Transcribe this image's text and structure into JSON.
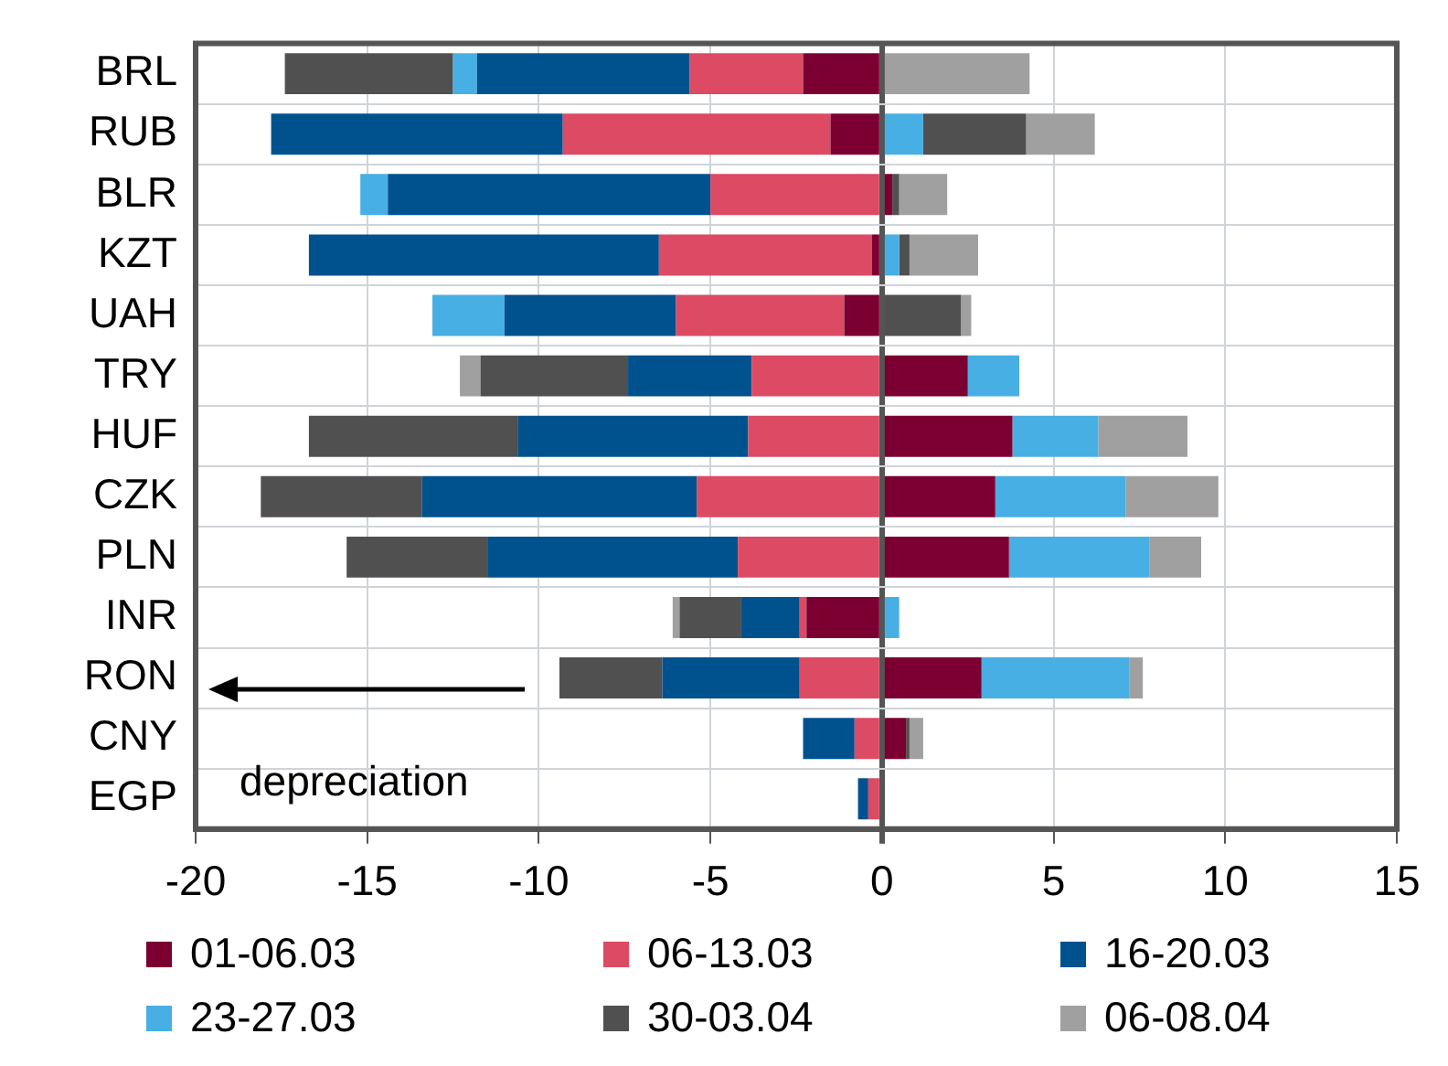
{
  "chart_data": {
    "type": "bar",
    "orientation": "horizontal",
    "stacked": true,
    "categories": [
      "BRL",
      "RUB",
      "BLR",
      "KZT",
      "UAH",
      "TRY",
      "HUF",
      "CZK",
      "PLN",
      "INR",
      "RON",
      "CNY",
      "EGP"
    ],
    "series": [
      {
        "name": "01-06.03",
        "color": "#7b0031",
        "values": [
          -2.3,
          -1.5,
          0.3,
          -0.3,
          -1.1,
          2.5,
          3.8,
          3.3,
          3.7,
          -2.2,
          2.9,
          0.7,
          null
        ]
      },
      {
        "name": "06-13.03",
        "color": "#dc4a63",
        "values": [
          -3.3,
          -7.8,
          -5.0,
          -6.2,
          -4.9,
          -3.8,
          -3.9,
          -5.4,
          -4.2,
          -0.2,
          -2.4,
          -0.8,
          -0.4
        ]
      },
      {
        "name": "16-20.03",
        "color": "#00528f",
        "values": [
          -6.2,
          -8.5,
          -9.4,
          -10.2,
          -5.0,
          -3.6,
          -6.7,
          -8.0,
          -7.3,
          -1.7,
          -4.0,
          -1.5,
          -0.3
        ]
      },
      {
        "name": "23-27.03",
        "color": "#47afe3",
        "values": [
          -0.7,
          1.2,
          -0.8,
          0.5,
          -2.1,
          1.5,
          2.5,
          3.8,
          4.1,
          0.5,
          4.3,
          null,
          null
        ]
      },
      {
        "name": "30-03.04",
        "color": "#505050",
        "values": [
          -4.9,
          3.0,
          0.2,
          0.3,
          2.3,
          -4.3,
          -6.1,
          -4.7,
          -4.1,
          -1.8,
          -3.0,
          0.1,
          null
        ]
      },
      {
        "name": "06-08.04",
        "color": "#a0a0a0",
        "values": [
          4.3,
          2.0,
          1.4,
          2.0,
          0.3,
          -0.6,
          2.6,
          2.7,
          1.5,
          -0.2,
          0.4,
          0.4,
          null
        ]
      }
    ],
    "xlim": [
      -20,
      15
    ],
    "xticks": [
      -20,
      -15,
      -10,
      -5,
      0,
      5,
      10,
      15
    ],
    "grid": true,
    "legend": "bottom",
    "annotations": [
      "depreciation"
    ]
  }
}
